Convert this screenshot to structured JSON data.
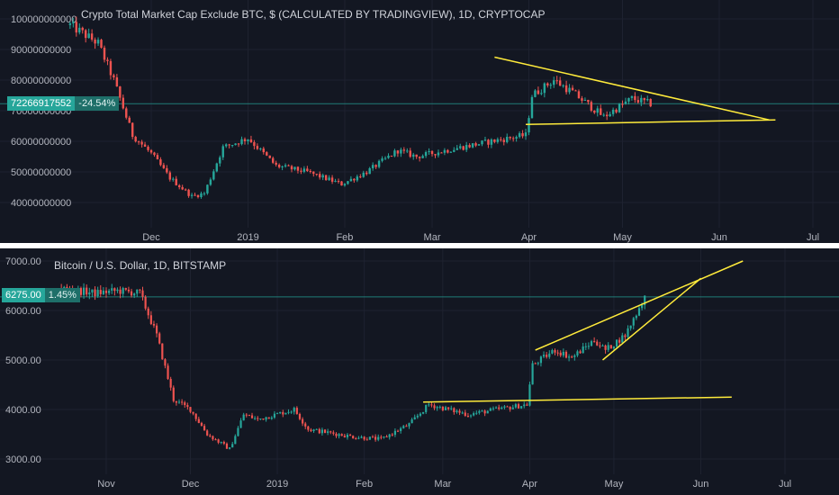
{
  "chart_data": [
    {
      "type": "candlestick",
      "title": "Crypto Total Market Cap Exclude BTC, $ (CALCULATED BY TRADINGVIEW), 1D, CRYPTOCAP",
      "last_price_label": "72266917552",
      "change_label": "-24.54%",
      "y_ticks": [
        "100000000000",
        "90000000000",
        "80000000000",
        "70000000000",
        "60000000000",
        "50000000000",
        "40000000000"
      ],
      "y_tick_values": [
        100000000000,
        90000000000,
        80000000000,
        70000000000,
        60000000000,
        50000000000,
        40000000000
      ],
      "x_ticks": [
        "Dec",
        "2019",
        "Feb",
        "Mar",
        "Apr",
        "May",
        "Jun",
        "Jul"
      ],
      "x_tick_dates": [
        "2018-12-01",
        "2019-01-01",
        "2019-02-01",
        "2019-03-01",
        "2019-04-01",
        "2019-05-01",
        "2019-06-01",
        "2019-07-01"
      ],
      "last_price": 72266917552,
      "series_points": [
        [
          "2018-11-05",
          98000000000
        ],
        [
          "2018-11-14",
          92000000000
        ],
        [
          "2018-11-19",
          80000000000
        ],
        [
          "2018-11-25",
          62000000000
        ],
        [
          "2018-12-01",
          56000000000
        ],
        [
          "2018-12-07",
          48000000000
        ],
        [
          "2018-12-14",
          42000000000
        ],
        [
          "2018-12-18",
          43000000000
        ],
        [
          "2018-12-24",
          58000000000
        ],
        [
          "2019-01-01",
          61000000000
        ],
        [
          "2019-01-10",
          52000000000
        ],
        [
          "2019-01-20",
          50000000000
        ],
        [
          "2019-01-31",
          46000000000
        ],
        [
          "2019-02-08",
          50000000000
        ],
        [
          "2019-02-18",
          57000000000
        ],
        [
          "2019-02-24",
          55000000000
        ],
        [
          "2019-03-10",
          58000000000
        ],
        [
          "2019-03-20",
          60000000000
        ],
        [
          "2019-03-31",
          62000000000
        ],
        [
          "2019-04-02",
          75000000000
        ],
        [
          "2019-04-09",
          80000000000
        ],
        [
          "2019-04-15",
          76000000000
        ],
        [
          "2019-04-25",
          68000000000
        ],
        [
          "2019-05-04",
          74000000000
        ],
        [
          "2019-05-10",
          72266917552
        ]
      ],
      "trendlines": [
        {
          "from": [
            "2019-03-21",
            87500000000
          ],
          "to": [
            "2019-06-17",
            67000000000
          ]
        },
        {
          "from": [
            "2019-03-31",
            65500000000
          ],
          "to": [
            "2019-06-19",
            67000000000
          ]
        }
      ],
      "colors": {
        "up": "#26a69a",
        "down": "#ef5350",
        "trendline": "#ffeb3b",
        "background": "#131722"
      }
    },
    {
      "type": "candlestick",
      "title": "Bitcoin / U.S. Dollar, 1D, BITSTAMP",
      "last_price_label": "6275.00",
      "change_label": "1.45%",
      "y_ticks": [
        "7000.00",
        "6000.00",
        "5000.00",
        "4000.00",
        "3000.00"
      ],
      "y_tick_values": [
        7000,
        6000,
        5000,
        4000,
        3000
      ],
      "x_ticks": [
        "Nov",
        "Dec",
        "2019",
        "Feb",
        "Mar",
        "Apr",
        "May",
        "Jun",
        "Jul"
      ],
      "x_tick_dates": [
        "2018-11-01",
        "2018-12-01",
        "2019-01-01",
        "2019-02-01",
        "2019-03-01",
        "2019-04-01",
        "2019-05-01",
        "2019-06-01",
        "2019-07-01"
      ],
      "last_price": 6275,
      "series_points": [
        [
          "2018-10-16",
          6450
        ],
        [
          "2018-10-28",
          6350
        ],
        [
          "2018-11-05",
          6400
        ],
        [
          "2018-11-13",
          6350
        ],
        [
          "2018-11-19",
          5500
        ],
        [
          "2018-11-25",
          4200
        ],
        [
          "2018-12-01",
          4000
        ],
        [
          "2018-12-07",
          3500
        ],
        [
          "2018-12-15",
          3200
        ],
        [
          "2018-12-20",
          3900
        ],
        [
          "2018-12-25",
          3800
        ],
        [
          "2019-01-07",
          4000
        ],
        [
          "2019-01-12",
          3600
        ],
        [
          "2019-01-28",
          3450
        ],
        [
          "2019-02-07",
          3400
        ],
        [
          "2019-02-17",
          3700
        ],
        [
          "2019-02-24",
          4100
        ],
        [
          "2019-03-10",
          3900
        ],
        [
          "2019-03-20",
          4000
        ],
        [
          "2019-03-31",
          4100
        ],
        [
          "2019-04-02",
          4900
        ],
        [
          "2019-04-10",
          5200
        ],
        [
          "2019-04-16",
          5050
        ],
        [
          "2019-04-24",
          5400
        ],
        [
          "2019-04-28",
          5200
        ],
        [
          "2019-05-05",
          5500
        ],
        [
          "2019-05-12",
          6275
        ]
      ],
      "trendlines": [
        {
          "from": [
            "2019-02-22",
            4150
          ],
          "to": [
            "2019-06-12",
            4250
          ]
        },
        {
          "from": [
            "2019-04-03",
            5200
          ],
          "to": [
            "2019-06-16",
            7000
          ]
        },
        {
          "from": [
            "2019-04-27",
            5000
          ],
          "to": [
            "2019-06-01",
            6650
          ]
        }
      ],
      "colors": {
        "up": "#26a69a",
        "down": "#ef5350",
        "trendline": "#ffeb3b",
        "background": "#131722"
      }
    }
  ]
}
